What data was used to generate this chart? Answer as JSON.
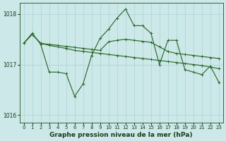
{
  "title": "Graphe pression niveau de la mer (hPa)",
  "bg_color": "#cce8e8",
  "grid_color": "#aad4d4",
  "line_color": "#2d6a2d",
  "ylim": [
    1015.85,
    1018.22
  ],
  "xlim": [
    -0.5,
    23.5
  ],
  "yticks": [
    1016,
    1017,
    1018
  ],
  "xticks": [
    0,
    1,
    2,
    3,
    4,
    5,
    6,
    7,
    8,
    9,
    10,
    11,
    12,
    13,
    14,
    15,
    16,
    17,
    18,
    19,
    20,
    21,
    22,
    23
  ],
  "line1_x": [
    0,
    1,
    2,
    3,
    4,
    5,
    6,
    7,
    8,
    9,
    10,
    11,
    12,
    13,
    14,
    15,
    16,
    17,
    18,
    19,
    20,
    21,
    22,
    23
  ],
  "line1_y": [
    1017.42,
    1017.6,
    1017.42,
    1017.4,
    1017.38,
    1017.36,
    1017.34,
    1017.32,
    1017.3,
    1017.28,
    1017.45,
    1017.48,
    1017.5,
    1017.48,
    1017.46,
    1017.44,
    1017.35,
    1017.26,
    1017.22,
    1017.2,
    1017.18,
    1017.16,
    1017.14,
    1017.12
  ],
  "line2_x": [
    0,
    1,
    2,
    3,
    4,
    5,
    6,
    7,
    8,
    9,
    10,
    11,
    12,
    13,
    14,
    15,
    16,
    17,
    18,
    19,
    20,
    21,
    22,
    23
  ],
  "line2_y": [
    1017.42,
    1017.6,
    1017.42,
    1017.38,
    1017.35,
    1017.32,
    1017.28,
    1017.26,
    1017.24,
    1017.22,
    1017.2,
    1017.18,
    1017.16,
    1017.14,
    1017.12,
    1017.1,
    1017.08,
    1017.06,
    1017.04,
    1017.02,
    1017.0,
    1016.98,
    1016.95,
    1016.92
  ],
  "line3_x": [
    0,
    1,
    2,
    3,
    4,
    5,
    6,
    7,
    8,
    9,
    10,
    11,
    12,
    13,
    14,
    15,
    16,
    17,
    18,
    19,
    20,
    21,
    22,
    23
  ],
  "line3_y": [
    1017.42,
    1017.62,
    1017.4,
    1016.85,
    1016.85,
    1016.82,
    1016.37,
    1016.62,
    1017.18,
    1017.52,
    1017.7,
    1017.92,
    1018.1,
    1017.77,
    1017.77,
    1017.62,
    1017.0,
    1017.48,
    1017.48,
    1016.9,
    1016.85,
    1016.8,
    1016.97,
    1016.65
  ]
}
